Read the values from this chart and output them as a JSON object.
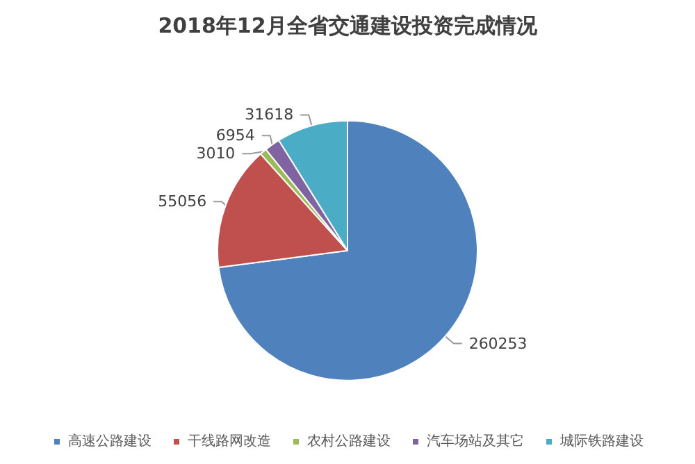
{
  "chart_data": {
    "type": "pie",
    "title": "2018年12月全省交通建设投资完成情况",
    "categories": [
      "高速公路建设",
      "干线路网改造",
      "农村公路建设",
      "汽车场站及其它",
      "城际铁路建设"
    ],
    "values": [
      260253,
      55056,
      3010,
      6954,
      31618
    ],
    "colors": [
      "#4f81bd",
      "#c0504d",
      "#9bbb59",
      "#8064a2",
      "#4bacc6"
    ],
    "data_labels": true,
    "legend": "bottom"
  }
}
